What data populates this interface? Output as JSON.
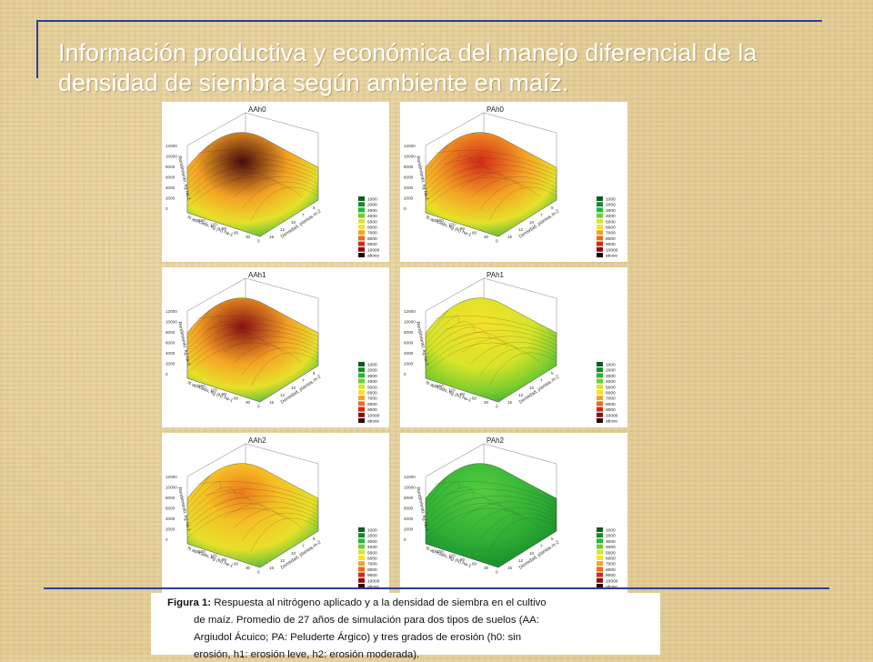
{
  "slide": {
    "title": "Información productiva y económica del manejo diferencial de la densidad de siembra según ambiente en maíz."
  },
  "panels": [
    {
      "label": "AAh0",
      "peak_color": "#4a0a0a"
    },
    {
      "label": "PAh0",
      "peak_color": "#d42a16"
    },
    {
      "label": "AAh1",
      "peak_color": "#8a1010"
    },
    {
      "label": "PAh1",
      "peak_color": "#f0d828"
    },
    {
      "label": "AAh2",
      "peak_color": "#ee7a1e"
    },
    {
      "label": "PAh2",
      "peak_color": "#3cb83a"
    }
  ],
  "axes": {
    "z_label": "Rendimiento, kg ha-1",
    "x_label": "N aplicado, kg (N) ha-1",
    "y_label": "Densidad, plantas.m-2",
    "z_ticks": [
      "12000",
      "10000",
      "8000",
      "6000",
      "4000",
      "2000",
      "0"
    ],
    "x_ticks": [
      "150",
      "120",
      "90",
      "60",
      "30",
      "0"
    ],
    "y_ticks": [
      "15",
      "12",
      "10",
      "7",
      "5"
    ]
  },
  "legend": {
    "entries": [
      {
        "label": "1000",
        "color": "#0b5d1e"
      },
      {
        "label": "2000",
        "color": "#138a2b"
      },
      {
        "label": "3000",
        "color": "#25b53a"
      },
      {
        "label": "4000",
        "color": "#6ccf2e"
      },
      {
        "label": "5000",
        "color": "#d6e62a"
      },
      {
        "label": "6000",
        "color": "#f7e02a"
      },
      {
        "label": "7000",
        "color": "#f4a224"
      },
      {
        "label": "8000",
        "color": "#ec6a1a"
      },
      {
        "label": "9000",
        "color": "#d42a16"
      },
      {
        "label": "10000",
        "color": "#8a1010"
      },
      {
        "label": "above",
        "color": "#2a0606"
      }
    ]
  },
  "caption": {
    "lead": "Figura 1:",
    "line1": " Respuesta al nitrógeno aplicado y a la densidad de siembra en el cultivo",
    "line2": "de maíz. Promedio de 27 años de simulación para dos tipos de suelos (AA:",
    "line3": "Argiudol Ácuico; PA: Peluderte Árgico) y tres grados de erosión (h0: sin",
    "line4": "erosión, h1: erosión leve, h2: erosión moderada)."
  }
}
